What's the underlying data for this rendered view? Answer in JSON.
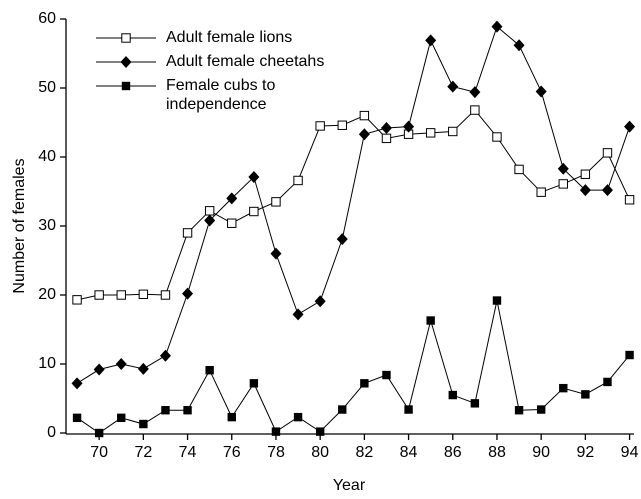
{
  "chart_data": {
    "type": "line",
    "x_label": "Year",
    "y_label": "Number of females",
    "x": [
      69,
      70,
      71,
      72,
      73,
      74,
      75,
      76,
      77,
      78,
      79,
      80,
      81,
      82,
      83,
      84,
      85,
      86,
      87,
      88,
      89,
      90,
      91,
      92,
      93,
      94
    ],
    "series": [
      {
        "name": "Adult female lions",
        "color": "#000000",
        "marker": "open-square",
        "values": [
          19.3,
          20,
          20,
          20.1,
          20,
          29,
          32.2,
          30.4,
          32.1,
          33.5,
          36.6,
          44.5,
          44.6,
          46,
          42.7,
          43.3,
          43.5,
          43.7,
          46.8,
          42.9,
          38.2,
          34.9,
          36.1,
          37.5,
          40.6,
          33.8
        ]
      },
      {
        "name": "Adult female cheetahs",
        "color": "#000000",
        "marker": "diamond",
        "values": [
          7.2,
          9.2,
          10,
          9.3,
          11.2,
          20.2,
          30.8,
          34,
          37.1,
          26,
          17.2,
          19.1,
          28.1,
          43.3,
          44.2,
          44.4,
          56.9,
          50.2,
          49.4,
          58.9,
          56.2,
          49.5,
          38.3,
          35.2,
          35.2,
          44.4
        ]
      },
      {
        "name": "Female cubs to independence",
        "color": "#000000",
        "marker": "square",
        "values": [
          2.2,
          0,
          2.2,
          1.3,
          3.3,
          3.3,
          9.1,
          2.3,
          7.2,
          0.2,
          2.3,
          0.2,
          3.4,
          7.2,
          8.4,
          3.4,
          16.3,
          5.5,
          4.3,
          19.2,
          3.3,
          3.4,
          6.5,
          5.6,
          7.4,
          11.3
        ]
      }
    ],
    "xlim": [
      68.5,
      94.2
    ],
    "xticks": [
      70,
      72,
      74,
      76,
      78,
      80,
      82,
      84,
      86,
      88,
      90,
      92,
      94
    ],
    "ylim": [
      0,
      60
    ],
    "yticks": [
      0,
      10,
      20,
      30,
      40,
      50,
      60
    ],
    "grid": false,
    "legend": "upper-left"
  }
}
